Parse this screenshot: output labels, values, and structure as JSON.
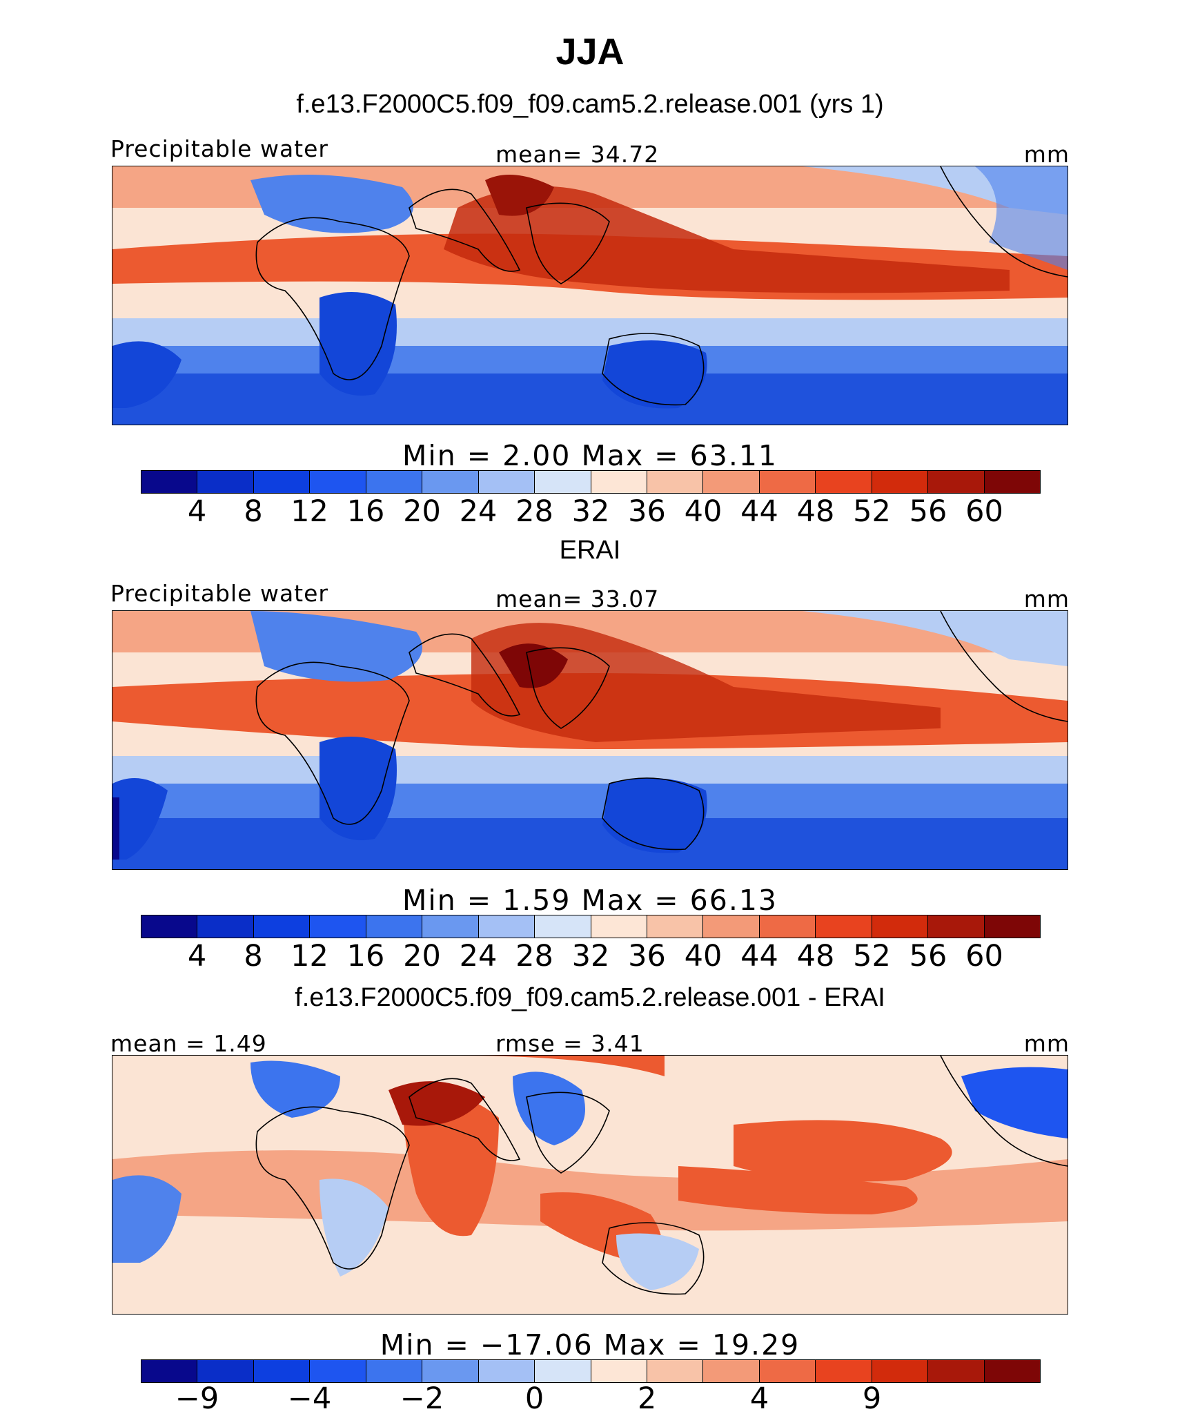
{
  "title": "JJA",
  "panels": [
    {
      "case_title": "f.e13.F2000C5.f09_f09.cam5.2.release.001 (yrs 1)",
      "left_label": "Precipitable water",
      "center_label": "mean=   34.72",
      "right_label": "mm",
      "minmax": "Min  =     2.00  Max  =   63.11",
      "ticks": [
        "4",
        "8",
        "12",
        "16",
        "20",
        "24",
        "28",
        "32",
        "36",
        "40",
        "44",
        "48",
        "52",
        "56",
        "60"
      ],
      "type": "field"
    },
    {
      "case_title": "ERAI",
      "left_label": "Precipitable water",
      "center_label": "mean=   33.07",
      "right_label": "mm",
      "minmax": "Min  =     1.59  Max  =   66.13",
      "ticks": [
        "4",
        "8",
        "12",
        "16",
        "20",
        "24",
        "28",
        "32",
        "36",
        "40",
        "44",
        "48",
        "52",
        "56",
        "60"
      ],
      "type": "field"
    },
    {
      "case_title": "f.e13.F2000C5.f09_f09.cam5.2.release.001 - ERAI",
      "left_label": "mean  =     1.49",
      "center_label": "rmse  =     3.41",
      "right_label": "mm",
      "minmax": "Min  = −17.06  Max  =   19.29",
      "ticks": [
        "−9",
        "",
        "−4",
        "",
        "−2",
        "",
        "0",
        "",
        "2",
        "",
        "4",
        "",
        "9",
        "",
        ""
      ],
      "type": "diff"
    }
  ],
  "colorbar_colors": [
    "#08088c",
    "#0a2ec8",
    "#0d3fe0",
    "#1e55f0",
    "#3c74ee",
    "#6a98f0",
    "#a4c0f5",
    "#d6e4f8",
    "#fde6d6",
    "#f8c3a8",
    "#f39a78",
    "#ee6a45",
    "#e8431f",
    "#d22b0c",
    "#a8180a",
    "#7e0606"
  ],
  "map_colors": {
    "deep_blue": "#1346d8",
    "mid_blue": "#4f82ec",
    "light_blue": "#b6cdf4",
    "cream": "#fbe4d4",
    "light_red": "#f5a585",
    "red": "#ec5a30",
    "dark_red": "#c42a0d",
    "coast": "#000000"
  }
}
